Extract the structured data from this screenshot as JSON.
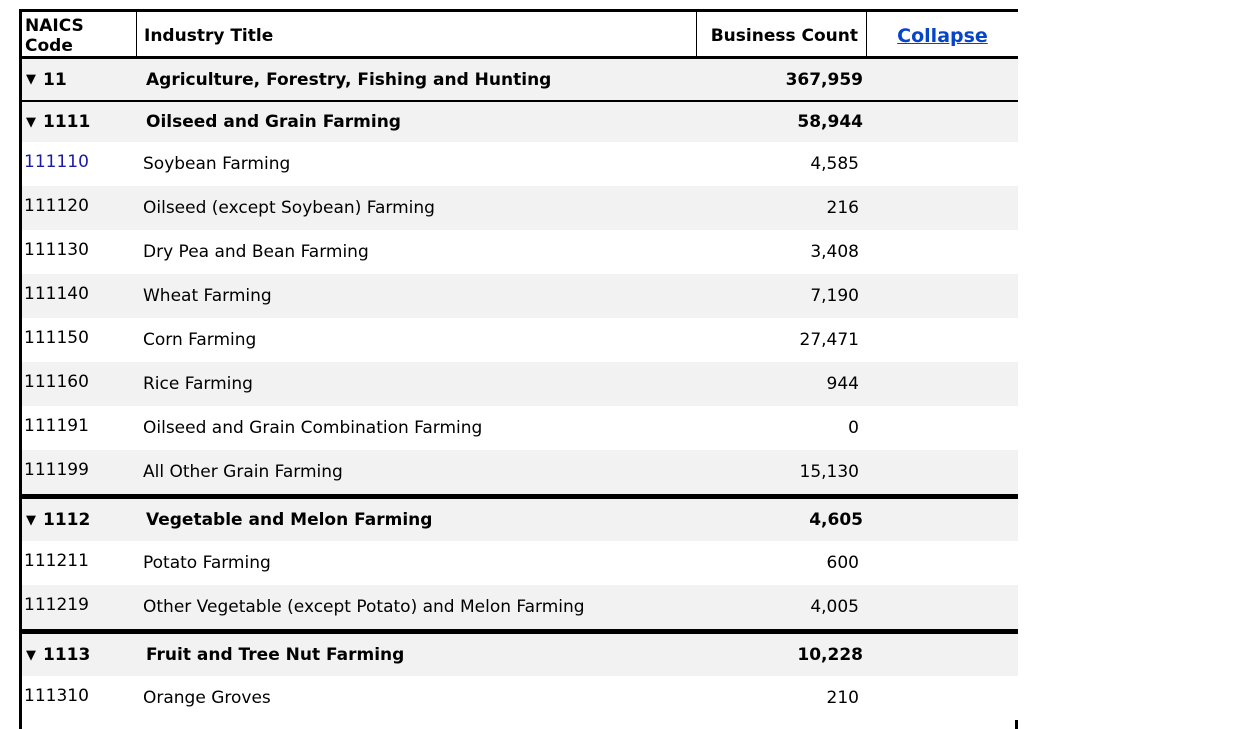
{
  "header": {
    "code": "NAICS Code",
    "title": "Industry Title",
    "count": "Business Count",
    "collapse": "Collapse"
  },
  "groups": [
    {
      "code": "11",
      "title": "Agriculture, Forestry, Fishing and Hunting",
      "count": "367,959"
    },
    {
      "code": "1111",
      "title": "Oilseed and Grain Farming",
      "count": "58,944"
    },
    {
      "code": "1112",
      "title": "Vegetable and Melon Farming",
      "count": "4,605"
    },
    {
      "code": "1113",
      "title": "Fruit and Tree Nut Farming",
      "count": "10,228"
    }
  ],
  "rows": [
    {
      "code": "111110",
      "title": "Soybean Farming",
      "count": "4,585"
    },
    {
      "code": "111120",
      "title": "Oilseed (except Soybean) Farming",
      "count": "216"
    },
    {
      "code": "111130",
      "title": "Dry Pea and Bean Farming",
      "count": "3,408"
    },
    {
      "code": "111140",
      "title": "Wheat Farming",
      "count": "7,190"
    },
    {
      "code": "111150",
      "title": "Corn Farming",
      "count": "27,471"
    },
    {
      "code": "111160",
      "title": "Rice Farming",
      "count": "944"
    },
    {
      "code": "111191",
      "title": "Oilseed and Grain Combination Farming",
      "count": "0"
    },
    {
      "code": "111199",
      "title": "All Other Grain Farming",
      "count": "15,130"
    },
    {
      "code": "111211",
      "title": "Potato Farming",
      "count": "600"
    },
    {
      "code": "111219",
      "title": "Other Vegetable (except Potato) and Melon Farming",
      "count": "4,005"
    },
    {
      "code": "111310",
      "title": "Orange Groves",
      "count": "210"
    }
  ],
  "icons": {
    "expand": "triangle-down-icon"
  },
  "colors": {
    "link": "#0645c8",
    "code_link": "#1a1aa6",
    "stripe": "#f2f2f2"
  }
}
